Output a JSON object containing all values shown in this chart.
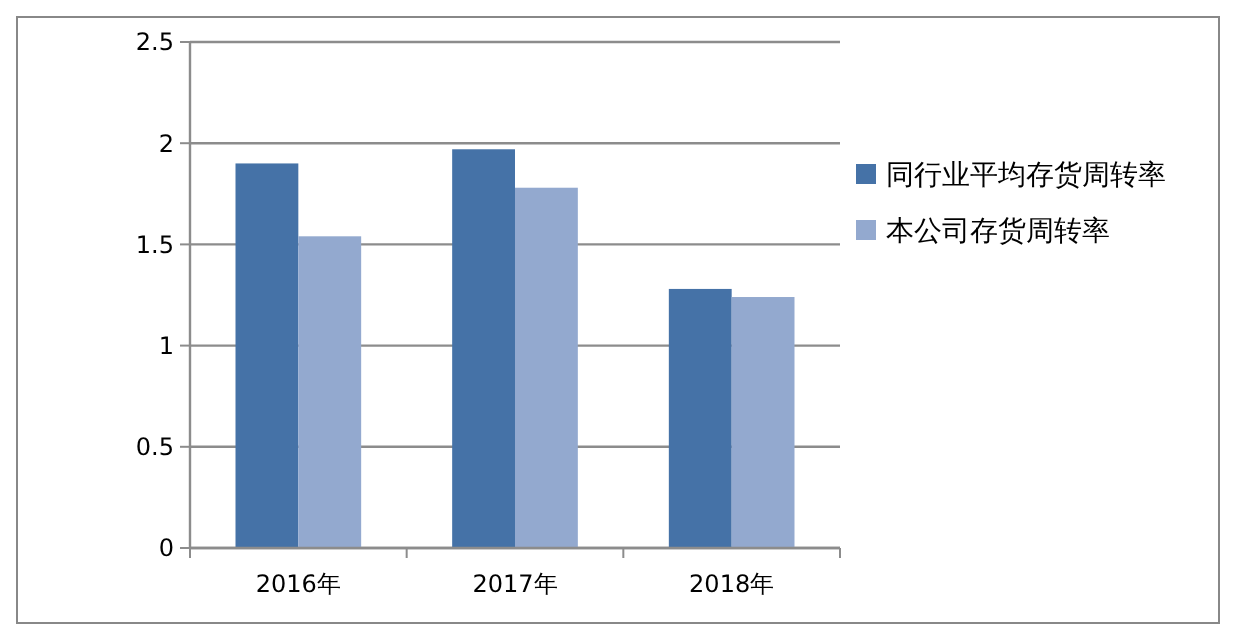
{
  "chart_data": {
    "type": "bar",
    "categories": [
      "2016年",
      "2017年",
      "2018年"
    ],
    "series": [
      {
        "name": "同行业平均存货周转率",
        "color": "#4572a7",
        "values": [
          1.9,
          1.97,
          1.28
        ]
      },
      {
        "name": "本公司存货周转率",
        "color": "#93a9cf",
        "values": [
          1.54,
          1.78,
          1.24
        ]
      }
    ],
    "ylim": [
      0,
      2.5
    ],
    "yticks": [
      0,
      0.5,
      1,
      1.5,
      2,
      2.5
    ],
    "grid": "y",
    "legend": "right"
  }
}
